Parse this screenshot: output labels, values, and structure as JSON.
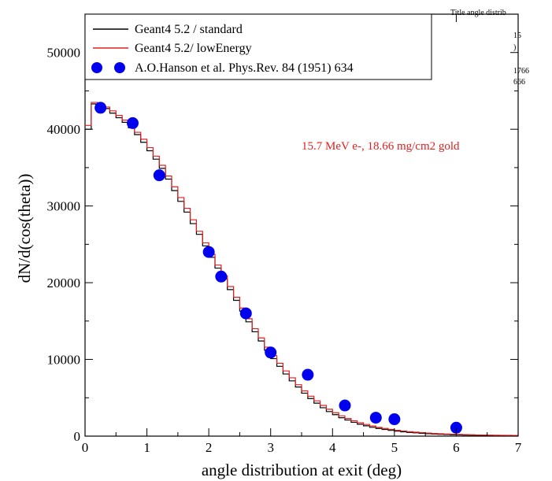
{
  "chart_data": {
    "type": "line",
    "title": "",
    "xlabel": "angle distribution at exit (deg)",
    "ylabel": "dN/d(cos(theta))",
    "xlim": [
      0,
      7
    ],
    "ylim": [
      0,
      55000
    ],
    "x_ticks": [
      0,
      1,
      2,
      3,
      4,
      5,
      6,
      7
    ],
    "y_ticks": [
      0,
      10000,
      20000,
      30000,
      40000,
      50000
    ],
    "grid": false,
    "legend_position": "top-left",
    "annotation": "15.7 MeV e-, 18.66 mg/cm2 gold",
    "stats_box_fragments": [
      "Title  angle distrib",
      "15",
      ")",
      "1766",
      "666"
    ],
    "series": [
      {
        "name": "Geant4 5.2 / standard",
        "kind": "step",
        "color": "#000000",
        "x": [
          0.0,
          0.1,
          0.2,
          0.3,
          0.4,
          0.5,
          0.6,
          0.7,
          0.8,
          0.9,
          1.0,
          1.1,
          1.2,
          1.3,
          1.4,
          1.5,
          1.6,
          1.7,
          1.8,
          1.9,
          2.0,
          2.1,
          2.2,
          2.3,
          2.4,
          2.5,
          2.6,
          2.7,
          2.8,
          2.9,
          3.0,
          3.1,
          3.2,
          3.3,
          3.4,
          3.5,
          3.6,
          3.7,
          3.8,
          3.9,
          4.0,
          4.1,
          4.2,
          4.3,
          4.4,
          4.5,
          4.6,
          4.7,
          4.8,
          4.9,
          5.0,
          5.1,
          5.2,
          5.3,
          5.4,
          5.5,
          5.6,
          5.7,
          5.8,
          5.9,
          6.0,
          6.1,
          6.2,
          6.3,
          6.4,
          6.5,
          6.6,
          6.7,
          6.8,
          6.9
        ],
        "y": [
          40000,
          43300,
          43100,
          42700,
          42100,
          41500,
          40900,
          40200,
          39300,
          38300,
          37200,
          36100,
          34900,
          33500,
          32000,
          30600,
          29200,
          27700,
          26300,
          24800,
          23300,
          21900,
          20500,
          19100,
          17700,
          16300,
          14900,
          13600,
          12400,
          11200,
          10100,
          9100,
          8100,
          7200,
          6400,
          5600,
          4900,
          4300,
          3700,
          3200,
          2800,
          2400,
          2100,
          1800,
          1550,
          1350,
          1150,
          1000,
          870,
          750,
          650,
          560,
          490,
          430,
          370,
          320,
          280,
          240,
          210,
          180,
          160,
          140,
          120,
          105,
          92,
          80,
          70,
          62,
          55,
          50
        ]
      },
      {
        "name": "Geant4 5.2/ lowEnergy",
        "kind": "step",
        "color": "#e02020",
        "x": [
          0.0,
          0.1,
          0.2,
          0.3,
          0.4,
          0.5,
          0.6,
          0.7,
          0.8,
          0.9,
          1.0,
          1.1,
          1.2,
          1.3,
          1.4,
          1.5,
          1.6,
          1.7,
          1.8,
          1.9,
          2.0,
          2.1,
          2.2,
          2.3,
          2.4,
          2.5,
          2.6,
          2.7,
          2.8,
          2.9,
          3.0,
          3.1,
          3.2,
          3.3,
          3.4,
          3.5,
          3.6,
          3.7,
          3.8,
          3.9,
          4.0,
          4.1,
          4.2,
          4.3,
          4.4,
          4.5,
          4.6,
          4.7,
          4.8,
          4.9,
          5.0,
          5.1,
          5.2,
          5.3,
          5.4,
          5.5,
          5.6,
          5.7,
          5.8,
          5.9,
          6.0,
          6.1,
          6.2,
          6.3,
          6.4,
          6.5,
          6.6,
          6.7,
          6.8,
          6.9
        ],
        "y": [
          40500,
          43500,
          43300,
          42900,
          42400,
          41800,
          41200,
          40500,
          39600,
          38700,
          37600,
          36500,
          35300,
          33900,
          32500,
          31100,
          29700,
          28200,
          26700,
          25200,
          23700,
          22300,
          20900,
          19500,
          18100,
          16700,
          15300,
          14000,
          12800,
          11600,
          10500,
          9500,
          8500,
          7600,
          6700,
          5900,
          5200,
          4600,
          4000,
          3500,
          3050,
          2650,
          2300,
          2000,
          1750,
          1520,
          1320,
          1150,
          1000,
          870,
          760,
          660,
          580,
          510,
          450,
          400,
          350,
          310,
          275,
          245,
          220,
          200,
          180,
          160,
          145,
          130,
          118,
          108,
          100,
          95
        ]
      },
      {
        "name": "A.O.Hanson et al. Phys.Rev. 84 (1951) 634",
        "kind": "scatter",
        "color": "#0000ee",
        "x": [
          0.25,
          0.77,
          1.2,
          2.0,
          2.2,
          2.6,
          3.0,
          3.6,
          4.2,
          4.7,
          5.0,
          6.0
        ],
        "y": [
          42800,
          40800,
          34000,
          24000,
          20800,
          16000,
          10900,
          8000,
          4000,
          2400,
          2200,
          1100
        ]
      }
    ]
  }
}
